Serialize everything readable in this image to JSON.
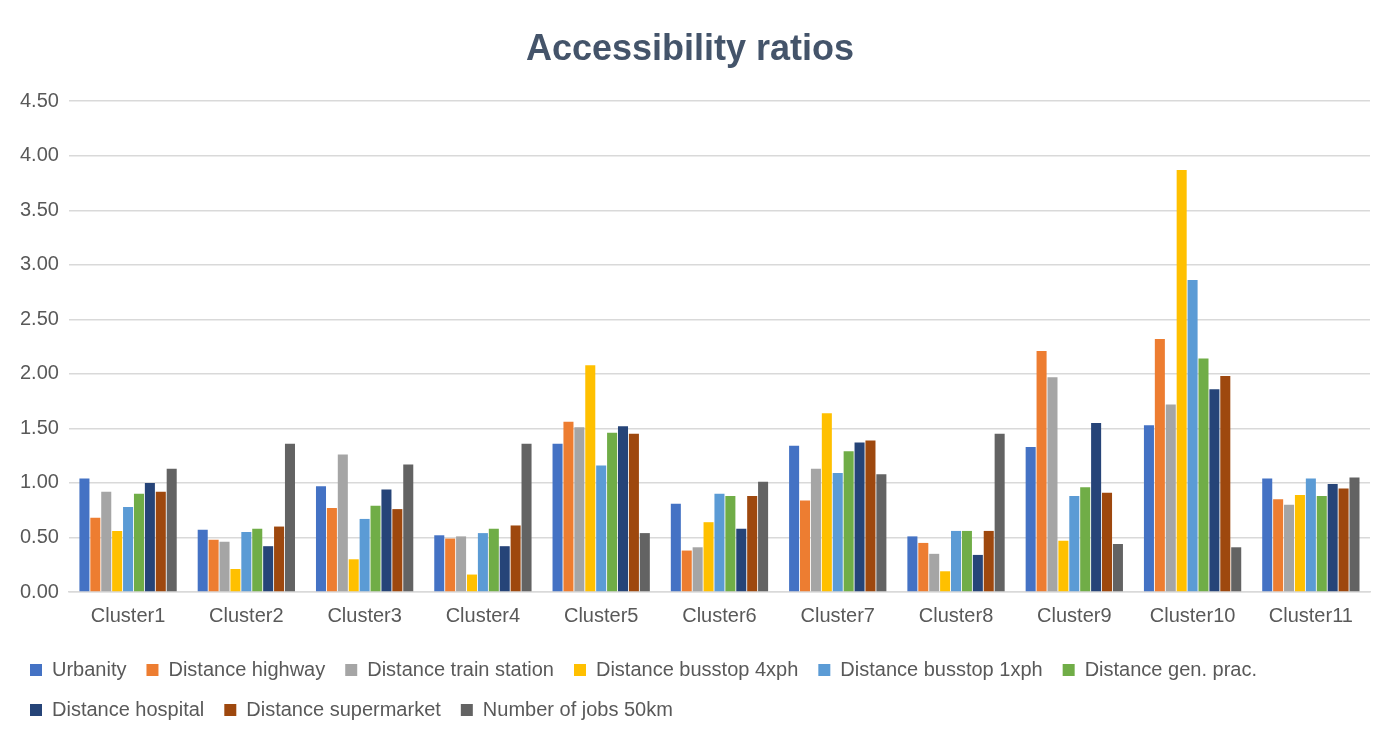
{
  "chart_data": {
    "type": "bar",
    "title": "Accessibility ratios",
    "categories": [
      "Cluster1",
      "Cluster2",
      "Cluster3",
      "Cluster4",
      "Cluster5",
      "Cluster6",
      "Cluster7",
      "Cluster8",
      "Cluster9",
      "Cluster10",
      "Cluster11"
    ],
    "series": [
      {
        "name": "Urbanity",
        "color": "#4472c4",
        "values": [
          1.04,
          0.57,
          0.97,
          0.52,
          1.36,
          0.81,
          1.34,
          0.51,
          1.33,
          1.53,
          1.04
        ]
      },
      {
        "name": "Distance highway",
        "color": "#ed7d31",
        "values": [
          0.68,
          0.48,
          0.77,
          0.49,
          1.56,
          0.38,
          0.84,
          0.45,
          2.21,
          2.32,
          0.85
        ]
      },
      {
        "name": "Distance train station",
        "color": "#a5a5a5",
        "values": [
          0.92,
          0.46,
          1.26,
          0.51,
          1.51,
          0.41,
          1.13,
          0.35,
          1.97,
          1.72,
          0.8
        ]
      },
      {
        "name": "Distance busstop 4xph",
        "color": "#ffc000",
        "values": [
          0.56,
          0.21,
          0.3,
          0.16,
          2.08,
          0.64,
          1.64,
          0.19,
          0.47,
          3.87,
          0.89
        ]
      },
      {
        "name": "Distance busstop 1xph",
        "color": "#5b9bd5",
        "values": [
          0.78,
          0.55,
          0.67,
          0.54,
          1.16,
          0.9,
          1.09,
          0.56,
          0.88,
          2.86,
          1.04
        ]
      },
      {
        "name": "Distance gen. prac.",
        "color": "#70ad47",
        "values": [
          0.9,
          0.58,
          0.79,
          0.58,
          1.46,
          0.88,
          1.29,
          0.56,
          0.96,
          2.14,
          0.88
        ]
      },
      {
        "name": "Distance hospital",
        "color": "#264478",
        "values": [
          1.0,
          0.42,
          0.94,
          0.42,
          1.52,
          0.58,
          1.37,
          0.34,
          1.55,
          1.86,
          0.99
        ]
      },
      {
        "name": "Distance supermarket",
        "color": "#9e480e",
        "values": [
          0.92,
          0.6,
          0.76,
          0.61,
          1.45,
          0.88,
          1.39,
          0.56,
          0.91,
          1.98,
          0.95
        ]
      },
      {
        "name": "Number of jobs 50km",
        "color": "#636363",
        "values": [
          1.13,
          1.36,
          1.17,
          1.36,
          0.54,
          1.01,
          1.08,
          1.45,
          0.44,
          0.41,
          1.05
        ]
      }
    ],
    "ylim": [
      0,
      4.5
    ],
    "yticks": [
      {
        "value": 0,
        "label": "0.00"
      },
      {
        "value": 0.5,
        "label": "0.50"
      },
      {
        "value": 1,
        "label": "1.00"
      },
      {
        "value": 1.5,
        "label": "1.50"
      },
      {
        "value": 2,
        "label": "2.00"
      },
      {
        "value": 2.5,
        "label": "2.50"
      },
      {
        "value": 3,
        "label": "3.00"
      },
      {
        "value": 3.5,
        "label": "3.50"
      },
      {
        "value": 4,
        "label": "4.00"
      },
      {
        "value": 4.5,
        "label": "4.50"
      }
    ],
    "grid": "y",
    "legend": "bottom"
  }
}
